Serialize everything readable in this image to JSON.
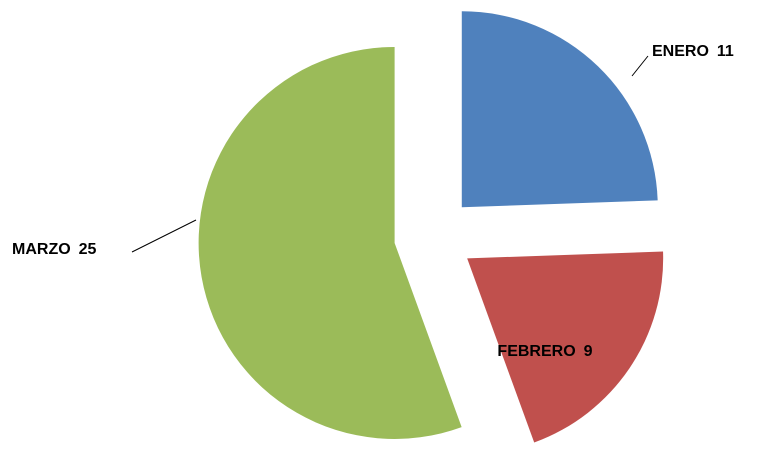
{
  "chart_data": {
    "type": "pie",
    "categories": [
      "ENERO",
      "FEBRERO",
      "MARZO"
    ],
    "values": [
      11,
      9,
      25
    ],
    "colors": [
      "#4f81bd",
      "#c0504d",
      "#9bbb59"
    ]
  }
}
